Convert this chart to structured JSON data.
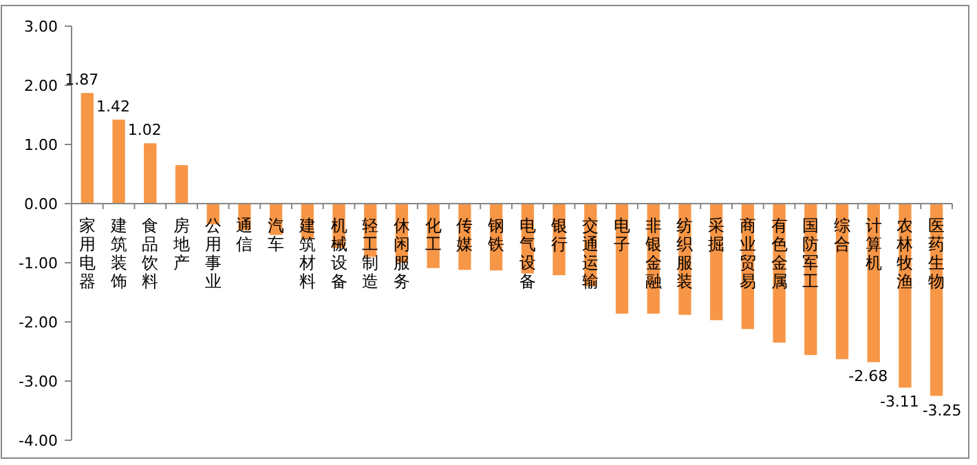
{
  "chart_data": {
    "type": "bar",
    "categories": [
      "家用电器",
      "建筑装饰",
      "食品饮料",
      "房地产",
      "公用事业",
      "通信",
      "汽车",
      "建筑材料",
      "机械设备",
      "轻工制造",
      "休闲服务",
      "化工",
      "传媒",
      "钢铁",
      "电气设备",
      "银行",
      "交通运输",
      "电子",
      "非银金融",
      "纺织服装",
      "采掘",
      "商业贸易",
      "有色金属",
      "国防军工",
      "综合",
      "计算机",
      "农林牧渔",
      "医药生物"
    ],
    "series": [
      {
        "color": "#f79646",
        "values": [
          1.87,
          1.42,
          1.02,
          0.65,
          -0.35,
          -0.45,
          -0.53,
          -0.6,
          -0.75,
          -0.9,
          -1.0,
          -1.09,
          -1.12,
          -1.13,
          -1.18,
          -1.21,
          -1.4,
          -1.86,
          -1.86,
          -1.88,
          -1.97,
          -2.12,
          -2.35,
          -2.56,
          -2.63,
          -2.68,
          -3.11,
          -3.25
        ],
        "value_labels": [
          "1.87",
          "1.42",
          "1.02",
          null,
          null,
          null,
          null,
          null,
          null,
          null,
          null,
          null,
          null,
          null,
          null,
          null,
          null,
          null,
          null,
          null,
          null,
          null,
          null,
          null,
          null,
          "-2.68",
          "-3.11",
          "-3.25"
        ]
      }
    ],
    "ylim": [
      -4,
      3
    ],
    "yticks": [
      {
        "value": -4,
        "label": "-4.00"
      },
      {
        "value": -3,
        "label": "-3.00"
      },
      {
        "value": -2,
        "label": "-2.00"
      },
      {
        "value": -1,
        "label": "-1.00"
      },
      {
        "value": 0,
        "label": "0.00"
      },
      {
        "value": 1,
        "label": "1.00"
      },
      {
        "value": 2,
        "label": "2.00"
      },
      {
        "value": 3,
        "label": "3.00"
      }
    ]
  }
}
